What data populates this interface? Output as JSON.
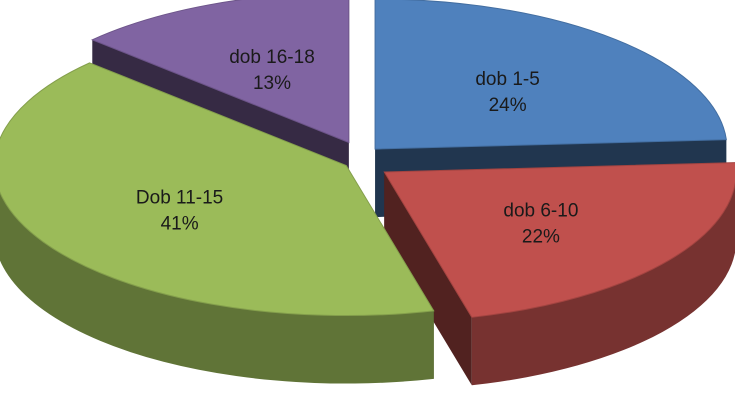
{
  "chart_data": {
    "type": "pie",
    "style": "3d-exploded",
    "title": "",
    "slices": [
      {
        "label": "dob 1-5",
        "value_label": "24%",
        "value": 24,
        "color": "#4f81bd"
      },
      {
        "label": "dob 6-10",
        "value_label": "22%",
        "value": 22,
        "color": "#c0504d"
      },
      {
        "label": "Dob 11-15",
        "value_label": "41%",
        "value": 41,
        "color": "#9bbb59"
      },
      {
        "label": "dob 16-18",
        "value_label": "13%",
        "value": 13,
        "color": "#8064a2"
      }
    ],
    "legend": "none"
  }
}
